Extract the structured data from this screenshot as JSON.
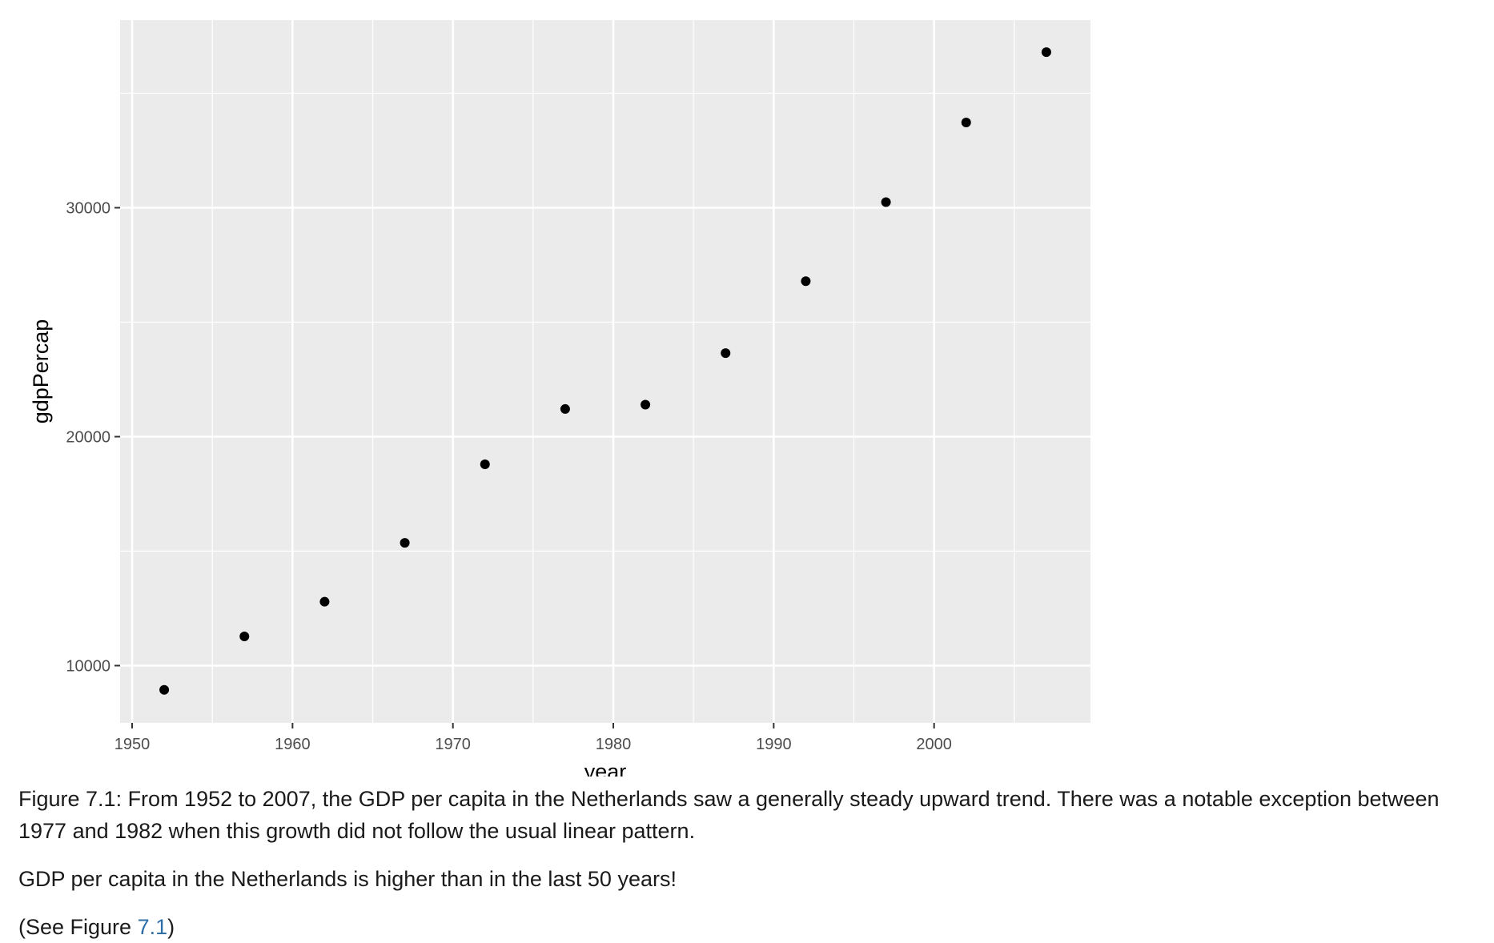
{
  "chart_data": {
    "type": "scatter",
    "xlabel": "year",
    "ylabel": "gdpPercap",
    "xlim": [
      1949.25,
      2009.75
    ],
    "ylim": [
      7500,
      38200
    ],
    "x_ticks": [
      1950,
      1960,
      1970,
      1980,
      1990,
      2000
    ],
    "y_ticks": [
      10000,
      20000,
      30000
    ],
    "grid": true,
    "colors": {
      "panel": "#ebebeb",
      "grid": "#ffffff",
      "point": "#000000"
    },
    "points": [
      {
        "x": 1952,
        "y": 8942
      },
      {
        "x": 1957,
        "y": 11276
      },
      {
        "x": 1962,
        "y": 12791
      },
      {
        "x": 1967,
        "y": 15363
      },
      {
        "x": 1972,
        "y": 18795
      },
      {
        "x": 1977,
        "y": 21209
      },
      {
        "x": 1982,
        "y": 21400
      },
      {
        "x": 1987,
        "y": 23651
      },
      {
        "x": 1992,
        "y": 26791
      },
      {
        "x": 1997,
        "y": 30246
      },
      {
        "x": 2002,
        "y": 33725
      },
      {
        "x": 2007,
        "y": 36798
      }
    ]
  },
  "caption": {
    "figure_text": "Figure 7.1: From 1952 to 2007, the GDP per capita in the Netherlands saw a generally steady upward trend. There was a notable exception between 1977 and 1982 when this growth did not follow the usual linear pattern.",
    "note": "GDP per capita in the Netherlands is higher than in the last 50 years!",
    "see_prefix": "(See Figure ",
    "see_ref": "7.1",
    "see_suffix": ")"
  },
  "colors": {
    "link": "#2f6fa8",
    "text": "#1a1a1a"
  }
}
